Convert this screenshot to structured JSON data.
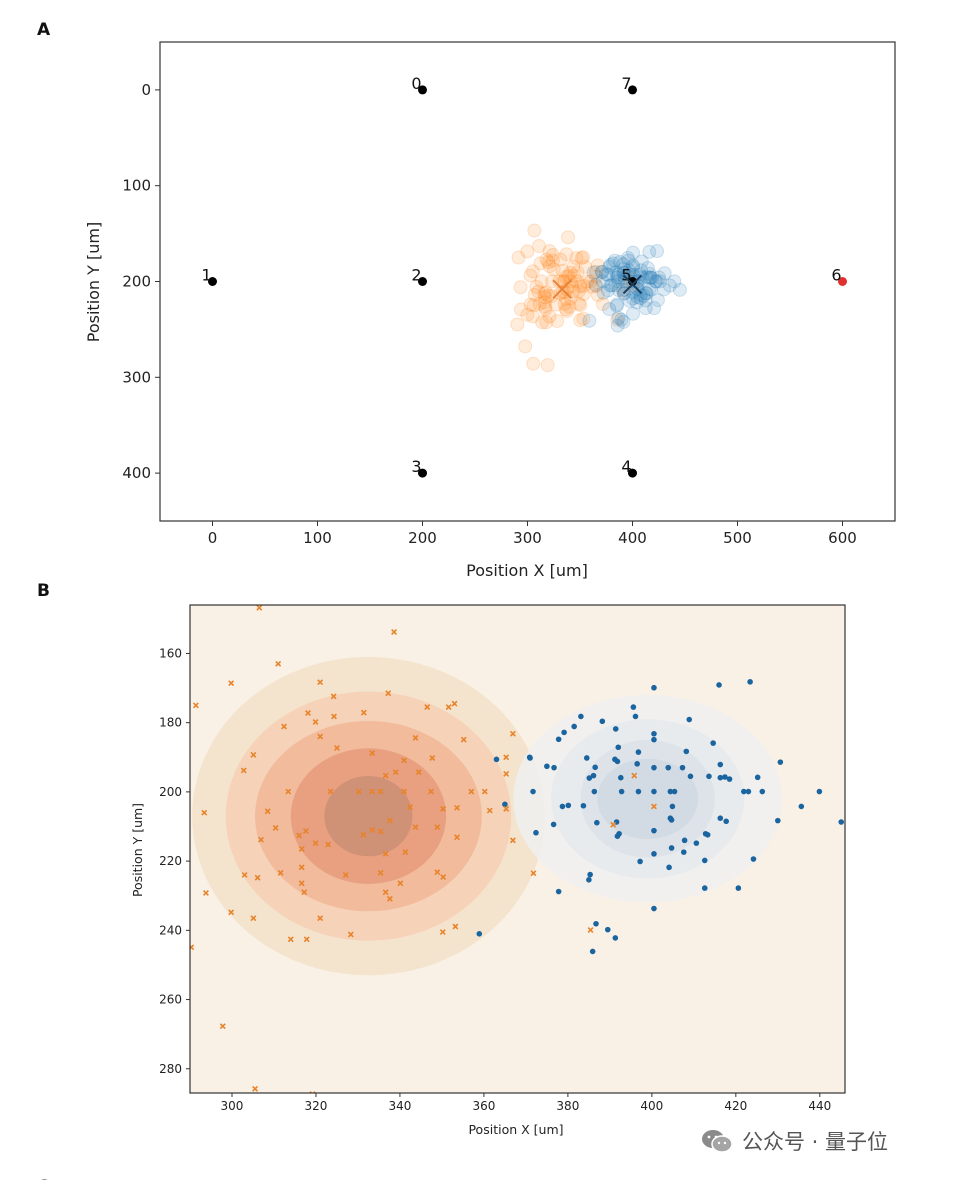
{
  "colors": {
    "orange": "#ff7f0e",
    "blue": "#1f77b4",
    "blue_dark_B": "#1a64a0",
    "orange_B": "#e8832a",
    "electrode": "#000000",
    "electrode_highlight": "#e03030",
    "panelB_background": "#faf1e6",
    "orange_levels": [
      "#f5e4cd",
      "#f6d3b8",
      "#f1bb9c",
      "#e8a081",
      "#cf9276"
    ],
    "blue_levels": [
      "#eef0ee",
      "#e5eaec",
      "#dbe2e8",
      "#d0d9e2"
    ]
  },
  "panel_labels": [
    "A",
    "B",
    "C"
  ],
  "watermark": {
    "icon": "wechat-icon",
    "text": "公众号 · 量子位"
  },
  "clusters": {
    "orange": [
      [
        306.5,
        146.8
      ],
      [
        338.6,
        153.8
      ],
      [
        311.0,
        163.0
      ],
      [
        299.8,
        168.6
      ],
      [
        321.0,
        168.3
      ],
      [
        291.4,
        175.0
      ],
      [
        324.2,
        172.4
      ],
      [
        337.2,
        171.5
      ],
      [
        318.1,
        177.2
      ],
      [
        324.3,
        178.2
      ],
      [
        331.4,
        177.1
      ],
      [
        319.9,
        179.8
      ],
      [
        312.4,
        181.1
      ],
      [
        346.5,
        175.5
      ],
      [
        351.6,
        175.5
      ],
      [
        353.0,
        174.5
      ],
      [
        321.0,
        184.0
      ],
      [
        355.2,
        184.9
      ],
      [
        366.9,
        183.2
      ],
      [
        343.7,
        184.4
      ],
      [
        325.0,
        187.3
      ],
      [
        305.1,
        189.3
      ],
      [
        333.4,
        188.8
      ],
      [
        347.7,
        190.2
      ],
      [
        365.3,
        190.0
      ],
      [
        302.8,
        193.8
      ],
      [
        336.6,
        195.3
      ],
      [
        339.0,
        194.3
      ],
      [
        344.5,
        194.3
      ],
      [
        341.0,
        190.9
      ],
      [
        365.3,
        194.8
      ],
      [
        313.4,
        199.9
      ],
      [
        323.5,
        199.9
      ],
      [
        330.2,
        199.9
      ],
      [
        333.4,
        199.9
      ],
      [
        335.4,
        199.9
      ],
      [
        341.0,
        199.9
      ],
      [
        347.4,
        199.9
      ],
      [
        357.0,
        199.9
      ],
      [
        360.2,
        199.9
      ],
      [
        293.4,
        206.0
      ],
      [
        308.5,
        205.6
      ],
      [
        342.4,
        204.4
      ],
      [
        350.3,
        204.9
      ],
      [
        353.6,
        204.6
      ],
      [
        361.4,
        205.4
      ],
      [
        365.3,
        204.9
      ],
      [
        310.4,
        210.4
      ],
      [
        316.0,
        212.6
      ],
      [
        317.6,
        211.3
      ],
      [
        331.3,
        212.4
      ],
      [
        333.4,
        211.0
      ],
      [
        335.4,
        211.4
      ],
      [
        337.6,
        208.3
      ],
      [
        343.7,
        210.2
      ],
      [
        348.9,
        210.2
      ],
      [
        306.9,
        213.8
      ],
      [
        319.9,
        214.8
      ],
      [
        322.9,
        215.2
      ],
      [
        316.6,
        216.5
      ],
      [
        336.6,
        217.9
      ],
      [
        341.3,
        217.4
      ],
      [
        353.6,
        213.1
      ],
      [
        366.9,
        214.0
      ],
      [
        303.0,
        224.0
      ],
      [
        306.1,
        224.8
      ],
      [
        311.6,
        223.4
      ],
      [
        316.6,
        221.8
      ],
      [
        316.6,
        226.4
      ],
      [
        317.2,
        229.0
      ],
      [
        327.1,
        224.0
      ],
      [
        335.4,
        223.4
      ],
      [
        340.1,
        226.4
      ],
      [
        348.9,
        223.2
      ],
      [
        350.3,
        224.6
      ],
      [
        293.8,
        229.2
      ],
      [
        336.6,
        229.0
      ],
      [
        337.6,
        230.9
      ],
      [
        299.8,
        234.8
      ],
      [
        305.1,
        236.5
      ],
      [
        321.0,
        236.5
      ],
      [
        314.0,
        242.6
      ],
      [
        317.8,
        242.6
      ],
      [
        328.3,
        241.2
      ],
      [
        350.2,
        240.5
      ],
      [
        353.2,
        238.9
      ],
      [
        297.8,
        267.7
      ],
      [
        305.5,
        285.8
      ],
      [
        371.8,
        223.5
      ],
      [
        395.8,
        195.3
      ],
      [
        400.5,
        204.2
      ],
      [
        390.8,
        209.5
      ],
      [
        385.4,
        239.9
      ],
      [
        290.3,
        244.9
      ],
      [
        319.2,
        287.3
      ]
    ],
    "blue": [
      [
        400.5,
        169.9
      ],
      [
        416.0,
        169.1
      ],
      [
        423.4,
        168.2
      ],
      [
        395.6,
        175.5
      ],
      [
        396.1,
        178.2
      ],
      [
        383.1,
        178.2
      ],
      [
        388.2,
        179.6
      ],
      [
        381.5,
        181.1
      ],
      [
        379.1,
        182.8
      ],
      [
        377.8,
        184.8
      ],
      [
        391.4,
        181.8
      ],
      [
        408.9,
        179.1
      ],
      [
        400.5,
        183.2
      ],
      [
        400.5,
        184.9
      ],
      [
        414.6,
        185.9
      ],
      [
        392.0,
        187.1
      ],
      [
        396.8,
        188.5
      ],
      [
        408.2,
        188.3
      ],
      [
        371.0,
        190.2
      ],
      [
        384.5,
        190.2
      ],
      [
        391.2,
        190.6
      ],
      [
        391.8,
        191.2
      ],
      [
        375.0,
        192.6
      ],
      [
        376.7,
        193.0
      ],
      [
        386.5,
        192.9
      ],
      [
        396.5,
        191.9
      ],
      [
        400.5,
        193.0
      ],
      [
        403.9,
        193.0
      ],
      [
        407.3,
        193.0
      ],
      [
        416.3,
        192.1
      ],
      [
        430.6,
        191.4
      ],
      [
        385.1,
        196.0
      ],
      [
        386.1,
        195.3
      ],
      [
        392.6,
        195.9
      ],
      [
        409.2,
        195.5
      ],
      [
        413.6,
        195.5
      ],
      [
        416.3,
        195.9
      ],
      [
        417.4,
        195.7
      ],
      [
        418.5,
        196.3
      ],
      [
        425.2,
        195.8
      ],
      [
        371.7,
        199.9
      ],
      [
        386.3,
        199.9
      ],
      [
        392.8,
        199.9
      ],
      [
        396.8,
        199.9
      ],
      [
        400.5,
        199.9
      ],
      [
        404.4,
        199.9
      ],
      [
        405.4,
        199.9
      ],
      [
        421.9,
        199.9
      ],
      [
        423.0,
        199.9
      ],
      [
        426.3,
        199.9
      ],
      [
        439.9,
        199.9
      ],
      [
        365.0,
        203.6
      ],
      [
        378.7,
        204.2
      ],
      [
        380.1,
        203.9
      ],
      [
        383.7,
        204.0
      ],
      [
        404.9,
        204.2
      ],
      [
        435.6,
        204.2
      ],
      [
        376.6,
        209.4
      ],
      [
        386.9,
        208.9
      ],
      [
        391.6,
        208.7
      ],
      [
        404.4,
        207.6
      ],
      [
        404.7,
        208.1
      ],
      [
        416.3,
        207.6
      ],
      [
        417.7,
        208.5
      ],
      [
        430.0,
        208.3
      ],
      [
        445.1,
        208.7
      ],
      [
        372.4,
        211.8
      ],
      [
        391.8,
        212.8
      ],
      [
        392.2,
        212.1
      ],
      [
        400.5,
        211.2
      ],
      [
        407.8,
        214.0
      ],
      [
        410.6,
        214.8
      ],
      [
        412.8,
        212.1
      ],
      [
        413.3,
        212.4
      ],
      [
        404.7,
        216.2
      ],
      [
        407.6,
        217.4
      ],
      [
        400.5,
        217.9
      ],
      [
        397.2,
        220.1
      ],
      [
        404.1,
        221.8
      ],
      [
        412.6,
        219.8
      ],
      [
        424.2,
        219.4
      ],
      [
        385.3,
        223.9
      ],
      [
        385.0,
        225.4
      ],
      [
        377.8,
        228.8
      ],
      [
        412.6,
        227.8
      ],
      [
        420.6,
        227.8
      ],
      [
        400.5,
        233.7
      ],
      [
        386.7,
        238.1
      ],
      [
        389.5,
        239.8
      ],
      [
        391.3,
        242.2
      ],
      [
        385.9,
        246.1
      ],
      [
        363.0,
        190.6
      ],
      [
        370.9,
        190.0
      ],
      [
        358.9,
        241.0
      ]
    ]
  },
  "chart_data": [
    {
      "panel": "A",
      "type": "scatter",
      "xlabel": "Position X [um]",
      "ylabel": "Position Y [um]",
      "xlim": [
        -50,
        650
      ],
      "ylim": [
        450,
        -50
      ],
      "y_inverted": true,
      "grid": false,
      "xticks": [
        0,
        100,
        200,
        300,
        400,
        500,
        600
      ],
      "yticks": [
        0,
        100,
        200,
        300,
        400
      ],
      "electrodes": [
        {
          "id": "0",
          "x": 200,
          "y": 0
        },
        {
          "id": "1",
          "x": 0,
          "y": 200
        },
        {
          "id": "2",
          "x": 200,
          "y": 200
        },
        {
          "id": "3",
          "x": 200,
          "y": 400
        },
        {
          "id": "4",
          "x": 400,
          "y": 400
        },
        {
          "id": "5",
          "x": 400,
          "y": 200
        },
        {
          "id": "6",
          "x": 600,
          "y": 200,
          "highlight": true
        },
        {
          "id": "7",
          "x": 400,
          "y": 0
        }
      ],
      "centroids": [
        {
          "cluster": "orange",
          "x": 333,
          "y": 208
        },
        {
          "cluster": "blue",
          "x": 400,
          "y": 203
        }
      ],
      "series": [
        "orange",
        "blue"
      ],
      "marker": "circle",
      "alpha": 0.2
    },
    {
      "panel": "B",
      "type": "scatter",
      "xlabel": "Position X [um]",
      "ylabel": "Position Y [um]",
      "xlim": [
        290,
        446
      ],
      "ylim": [
        287,
        146
      ],
      "y_inverted": true,
      "grid": false,
      "xticks": [
        300,
        320,
        340,
        360,
        380,
        400,
        420,
        440
      ],
      "yticks": [
        160,
        180,
        200,
        220,
        240,
        260,
        280
      ],
      "density_contours": [
        {
          "cluster": "orange",
          "center": [
            332.5,
            207
          ],
          "radii": [
            [
              42,
              46
            ],
            [
              34,
              36
            ],
            [
              27,
              27.5
            ],
            [
              18.5,
              19.6
            ],
            [
              10.5,
              11.6
            ]
          ]
        },
        {
          "cluster": "blue",
          "center": [
            399,
            202
          ],
          "radii": [
            [
              32,
              30
            ],
            [
              23,
              23
            ],
            [
              16,
              17
            ],
            [
              12,
              11.6
            ]
          ]
        }
      ],
      "series": [
        {
          "cluster": "orange",
          "marker": "x"
        },
        {
          "cluster": "blue",
          "marker": "dot"
        }
      ]
    }
  ]
}
